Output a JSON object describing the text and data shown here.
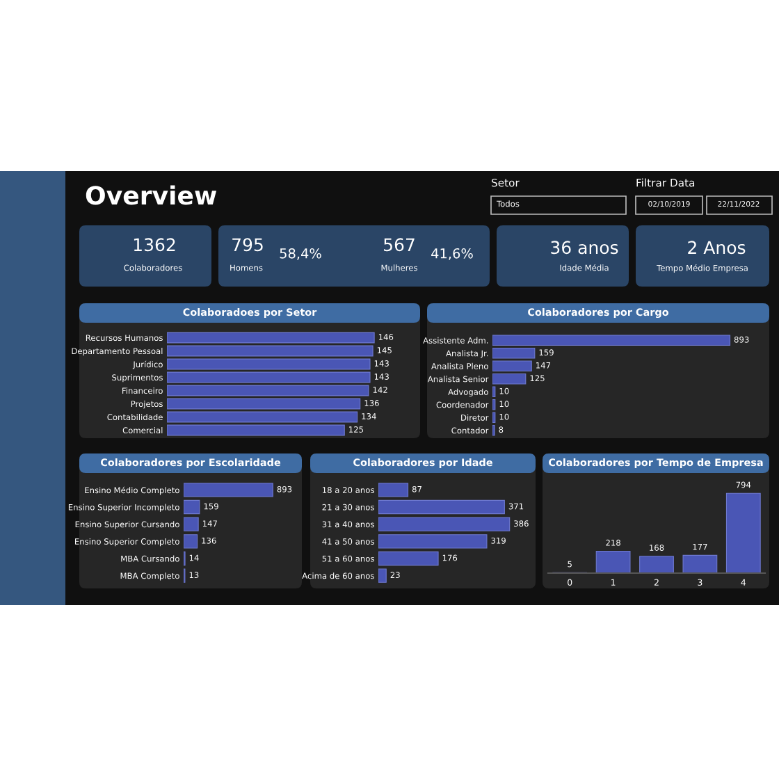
{
  "chart_data": [
    {
      "type": "other",
      "title": "Overview",
      "annotations": [
        "Setor",
        "Todos",
        "Filtrar Data",
        "02/10/2019",
        "22/11/2022",
        "1362",
        "Colaboradores",
        "795",
        "Homens",
        "58,4%",
        "567",
        "Mulheres",
        "41,6%",
        "36 anos",
        "Idade Média",
        "2 Anos",
        "Tempo Médio Empresa"
      ]
    },
    {
      "type": "bar",
      "orientation": "horizontal",
      "title": "Colaboradoes por Setor",
      "tick_labels": "y",
      "data_labels": true,
      "color": "#4a56b5",
      "categories": [
        "Recursos Humanos",
        "Departamento Pessoal",
        "Jurídico",
        "Suprimentos",
        "Financeiro",
        "Projetos",
        "Contabilidade",
        "Comercial"
      ],
      "values": [
        146,
        145,
        143,
        143,
        142,
        136,
        134,
        125
      ]
    },
    {
      "type": "bar",
      "orientation": "horizontal",
      "title": "Colaboradores por Cargo",
      "tick_labels": "y",
      "data_labels": true,
      "color": "#4a56b5",
      "categories": [
        "Assistente Adm.",
        "Analista Jr.",
        "Analista Pleno",
        "Analista Senior",
        "Advogado",
        "Coordenador",
        "Diretor",
        "Contador"
      ],
      "values": [
        893,
        159,
        147,
        125,
        10,
        10,
        10,
        8
      ]
    },
    {
      "type": "bar",
      "orientation": "horizontal",
      "title": "Colaboradores por Escolaridade",
      "tick_labels": "y",
      "data_labels": true,
      "color": "#4a56b5",
      "categories": [
        "Ensino Médio Completo",
        "Ensino Superior Incompleto",
        "Ensino Superior Cursando",
        "Ensino Superior Completo",
        "MBA Cursando",
        "MBA Completo"
      ],
      "values": [
        893,
        159,
        147,
        136,
        14,
        13
      ]
    },
    {
      "type": "bar",
      "orientation": "horizontal",
      "title": "Colaboradores por Idade",
      "tick_labels": "y",
      "data_labels": true,
      "color": "#4a56b5",
      "categories": [
        "18 a 20 anos",
        "21 a 30 anos",
        "31 a 40 anos",
        "41 a 50 anos",
        "51 a 60 anos",
        "Acima de 60 anos"
      ],
      "values": [
        87,
        371,
        386,
        319,
        176,
        23
      ]
    },
    {
      "type": "bar",
      "title": "Colaboradores por Tempo de Empresa",
      "tick_labels": "x",
      "data_labels": true,
      "color": "#4a56b5",
      "categories": [
        "0",
        "1",
        "2",
        "3",
        "4"
      ],
      "values": [
        5,
        218,
        168,
        177,
        794
      ]
    }
  ]
}
